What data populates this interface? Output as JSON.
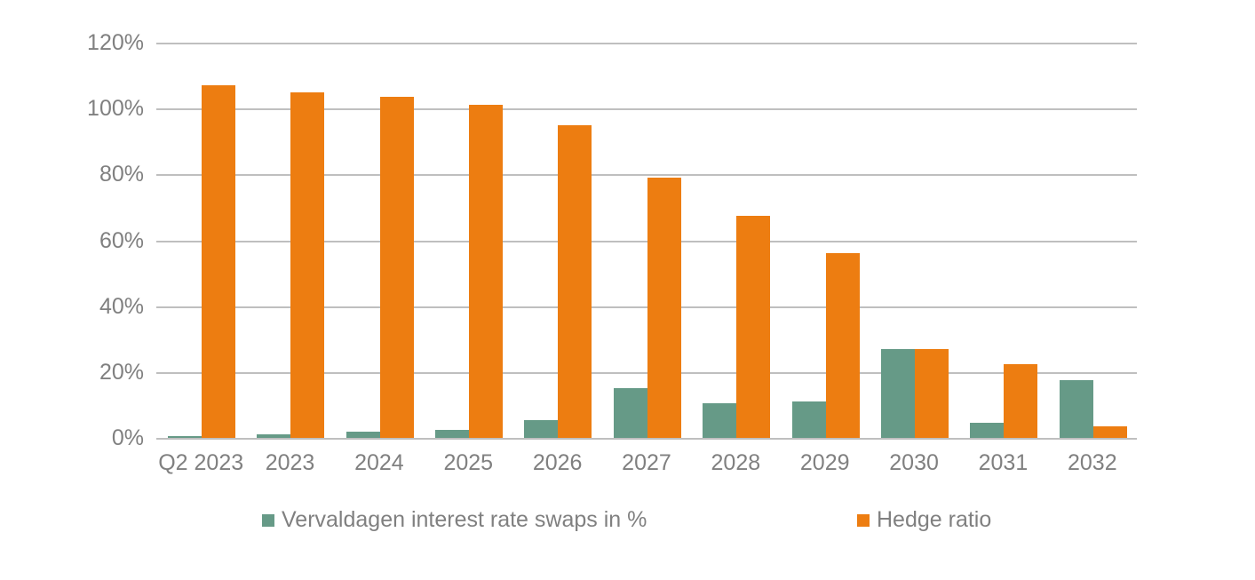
{
  "chart_data": {
    "type": "bar",
    "title": "",
    "xlabel": "",
    "ylabel": "",
    "categories": [
      "Q2 2023",
      "2023",
      "2024",
      "2025",
      "2026",
      "2027",
      "2028",
      "2029",
      "2030",
      "2031",
      "2032"
    ],
    "series": [
      {
        "name": "Vervaldagen interest rate swaps in %",
        "color": "#669a87",
        "values": [
          0.5,
          1,
          2,
          2.5,
          5.5,
          15,
          10.5,
          11,
          27,
          4.5,
          17.5
        ]
      },
      {
        "name": "Hedge ratio",
        "color": "#ed7d11",
        "values": [
          107,
          105,
          103.5,
          101,
          95,
          79,
          67.5,
          56,
          27,
          22.5,
          3.5
        ]
      }
    ],
    "ylim": [
      0,
      120
    ],
    "yticks": [
      0,
      20,
      40,
      60,
      80,
      100,
      120
    ],
    "ytick_labels": [
      "0%",
      "20%",
      "40%",
      "60%",
      "80%",
      "100%",
      "120%"
    ],
    "grid": true,
    "legend_position": "bottom",
    "colors": {
      "gridline": "#bfbfbf",
      "axis_text": "#808080",
      "background": "#ffffff"
    }
  }
}
